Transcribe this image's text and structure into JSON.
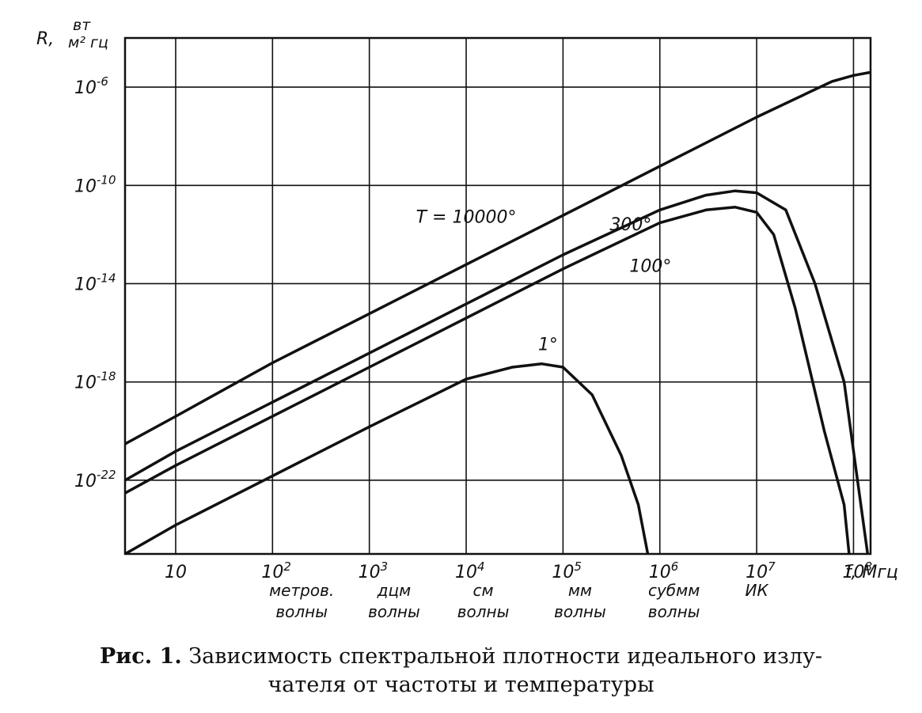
{
  "chart_data": {
    "type": "line",
    "x_scale": "log",
    "y_scale": "log",
    "xlim": [
      3,
      150000000.0
    ],
    "ylim": [
      1e-25,
      0.0001
    ],
    "grid": true,
    "xlabel": "f, Мгц",
    "ylabel_var": "R,",
    "ylabel_num": "вт",
    "ylabel_den": "м² гц",
    "x_ticks": [
      {
        "value": 10,
        "base": "10",
        "exp": ""
      },
      {
        "value": 100,
        "base": "10",
        "exp": "2"
      },
      {
        "value": 1000,
        "base": "10",
        "exp": "3"
      },
      {
        "value": 10000,
        "base": "10",
        "exp": "4"
      },
      {
        "value": 100000,
        "base": "10",
        "exp": "5"
      },
      {
        "value": 1000000,
        "base": "10",
        "exp": "6"
      },
      {
        "value": 10000000,
        "base": "10",
        "exp": "7"
      },
      {
        "value": 100000000,
        "base": "10",
        "exp": "8"
      }
    ],
    "y_ticks": [
      {
        "value": 1e-06,
        "base": "10",
        "exp": "-6"
      },
      {
        "value": 1e-10,
        "base": "10",
        "exp": "-10"
      },
      {
        "value": 1e-14,
        "base": "10",
        "exp": "-14"
      },
      {
        "value": 1e-18,
        "base": "10",
        "exp": "-18"
      },
      {
        "value": 1e-22,
        "base": "10",
        "exp": "-22"
      }
    ],
    "bands": [
      {
        "center": 200,
        "line1": "метров.",
        "line2": "волны"
      },
      {
        "center": 1800,
        "line1": "дцм",
        "line2": "волны"
      },
      {
        "center": 15000,
        "line1": "см",
        "line2": "волны"
      },
      {
        "center": 150000,
        "line1": "мм",
        "line2": "волны"
      },
      {
        "center": 1400000,
        "line1": "субмм",
        "line2": "волны"
      },
      {
        "center": 10000000,
        "line1": "ИК",
        "line2": ""
      }
    ],
    "series": [
      {
        "name": "T = 10000°",
        "x": [
          3,
          10,
          100,
          1000,
          10000,
          100000,
          1000000,
          10000000,
          60000000,
          100000000,
          150000000
        ],
        "y": [
          3e-21,
          4e-20,
          6e-18,
          6e-16,
          6e-14,
          6e-12,
          6e-10,
          6e-08,
          1.7e-06,
          3e-06,
          4e-06
        ]
      },
      {
        "name": "300°",
        "x": [
          3,
          10,
          100,
          1000,
          10000,
          100000,
          1000000,
          3000000,
          6000000,
          10000000,
          20000000,
          40000000,
          80000000,
          110000000,
          140000000
        ],
        "y": [
          1e-22,
          1.5e-21,
          1.5e-19,
          1.5e-17,
          1.5e-15,
          1.5e-13,
          1e-11,
          4e-11,
          6e-11,
          5e-11,
          1e-11,
          1e-14,
          1e-18,
          1e-22,
          1e-25
        ]
      },
      {
        "name": "100°",
        "x": [
          3,
          10,
          100,
          1000,
          10000,
          100000,
          1000000,
          3000000,
          6000000,
          10000000,
          15000000,
          25000000,
          50000000,
          80000000,
          90000000
        ],
        "y": [
          3e-23,
          4e-22,
          4e-20,
          4e-18,
          4e-16,
          4e-14,
          3e-12,
          1e-11,
          1.3e-11,
          8e-12,
          1e-12,
          1e-15,
          1e-20,
          1e-23,
          1e-25
        ]
      },
      {
        "name": "1°",
        "x": [
          3,
          10,
          100,
          1000,
          10000,
          30000,
          60000,
          100000,
          200000,
          400000,
          600000,
          750000
        ],
        "y": [
          1e-25,
          1.5e-24,
          1.5e-22,
          1.5e-20,
          1.3e-18,
          4e-18,
          5.5e-18,
          4e-18,
          3e-19,
          1e-21,
          1e-23,
          1e-25
        ]
      }
    ],
    "series_labels": [
      {
        "text": "Т = 10000°",
        "x": 10000,
        "y": 3e-12
      },
      {
        "text": "300°",
        "x": 500000,
        "y": 1.5e-12
      },
      {
        "text": "100°",
        "x": 800000,
        "y": 3e-14
      },
      {
        "text": "1°",
        "x": 70000,
        "y": 2e-17
      }
    ]
  },
  "caption": {
    "bold": "Рис. 1.",
    "line1": "Зависимость спектральной плотности идеального излу-",
    "line2": "чателя от частоты и температуры"
  }
}
